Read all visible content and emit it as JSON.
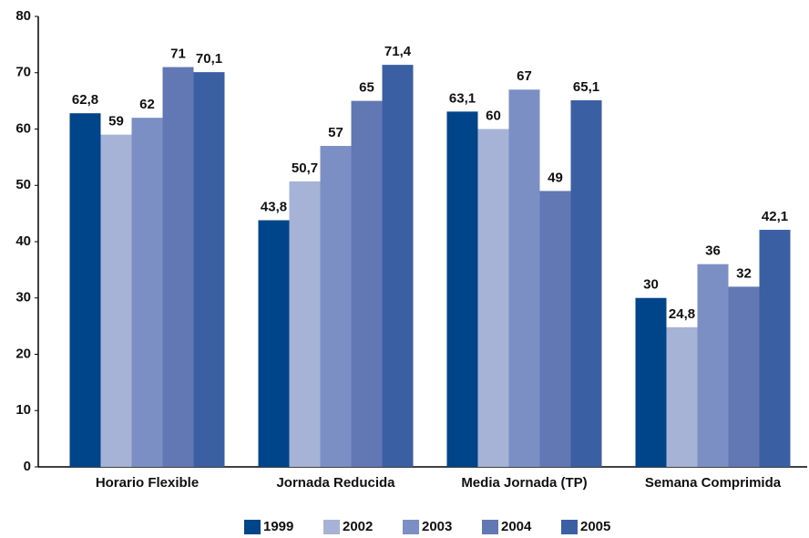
{
  "chart_data": {
    "type": "bar",
    "categories": [
      "Horario Flexible",
      "Jornada Reducida",
      "Media Jornada (TP)",
      "Semana Comprimida"
    ],
    "series": [
      {
        "name": "1999",
        "color": "#00458a",
        "values": [
          62.8,
          43.8,
          63.1,
          30
        ],
        "value_labels": [
          "62,8",
          "43,8",
          "63,1",
          "30"
        ]
      },
      {
        "name": "2002",
        "color": "#a6b3d6",
        "values": [
          59,
          50.7,
          60,
          24.8
        ],
        "value_labels": [
          "59",
          "50,7",
          "60",
          "24,8"
        ]
      },
      {
        "name": "2003",
        "color": "#7b8fc4",
        "values": [
          62,
          57,
          67,
          36
        ],
        "value_labels": [
          "62",
          "57",
          "67",
          "36"
        ]
      },
      {
        "name": "2004",
        "color": "#6178b5",
        "values": [
          71,
          65,
          49,
          32
        ],
        "value_labels": [
          "71",
          "65",
          "49",
          "32"
        ]
      },
      {
        "name": "2005",
        "color": "#3a5fa3",
        "values": [
          70.1,
          71.4,
          65.1,
          42.1
        ],
        "value_labels": [
          "70,1",
          "71,4",
          "65,1",
          "42,1"
        ]
      }
    ],
    "ylim": [
      0,
      80
    ],
    "yticks": [
      0,
      10,
      20,
      30,
      40,
      50,
      60,
      70,
      80
    ],
    "grid": false,
    "legend": "bottom"
  }
}
